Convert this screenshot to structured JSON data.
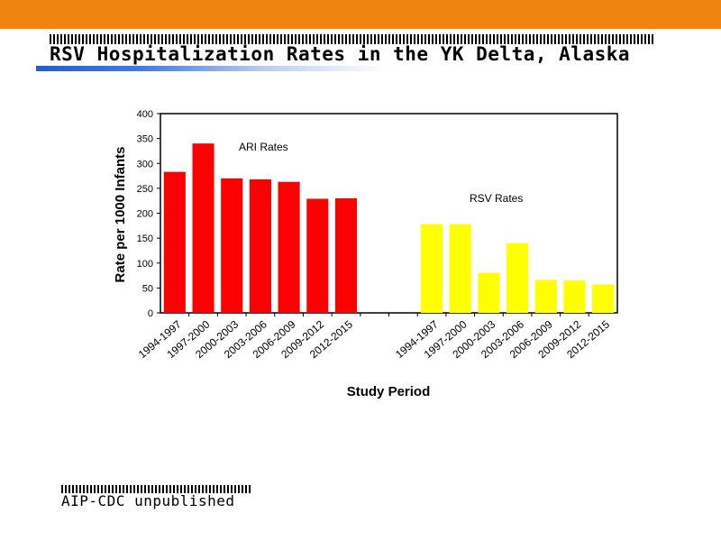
{
  "header": {
    "title": "RSV Hospitalization Rates in the YK  Delta, Alaska"
  },
  "footer": {
    "text": "AIP-CDC unpublished"
  },
  "colors": {
    "top_bar": "#f0820f",
    "ari_bars": "#ff0000",
    "rsv_bars": "#ffff00"
  },
  "chart_data": {
    "type": "bar",
    "xlabel": "Study Period",
    "ylabel": "Rate per 1000 Infants",
    "ylim": [
      0,
      400
    ],
    "yticks": [
      0,
      50,
      100,
      150,
      200,
      250,
      300,
      350,
      400
    ],
    "grid": false,
    "series": [
      {
        "name": "ARI Rates",
        "color": "#ff0000",
        "categories": [
          "1994-1997",
          "1997-2000",
          "2000-2003",
          "2003-2006",
          "2006-2009",
          "2009-2012",
          "2012-2015"
        ],
        "values": [
          283,
          340,
          270,
          268,
          263,
          229,
          230
        ]
      },
      {
        "name": "RSV Rates",
        "color": "#ffff00",
        "categories": [
          "1994-1997",
          "1997-2000",
          "2000-2003",
          "2003-2006",
          "2006-2009",
          "2009-2012",
          "2012-2015"
        ],
        "values": [
          178,
          178,
          80,
          140,
          66,
          65,
          57
        ]
      }
    ]
  }
}
